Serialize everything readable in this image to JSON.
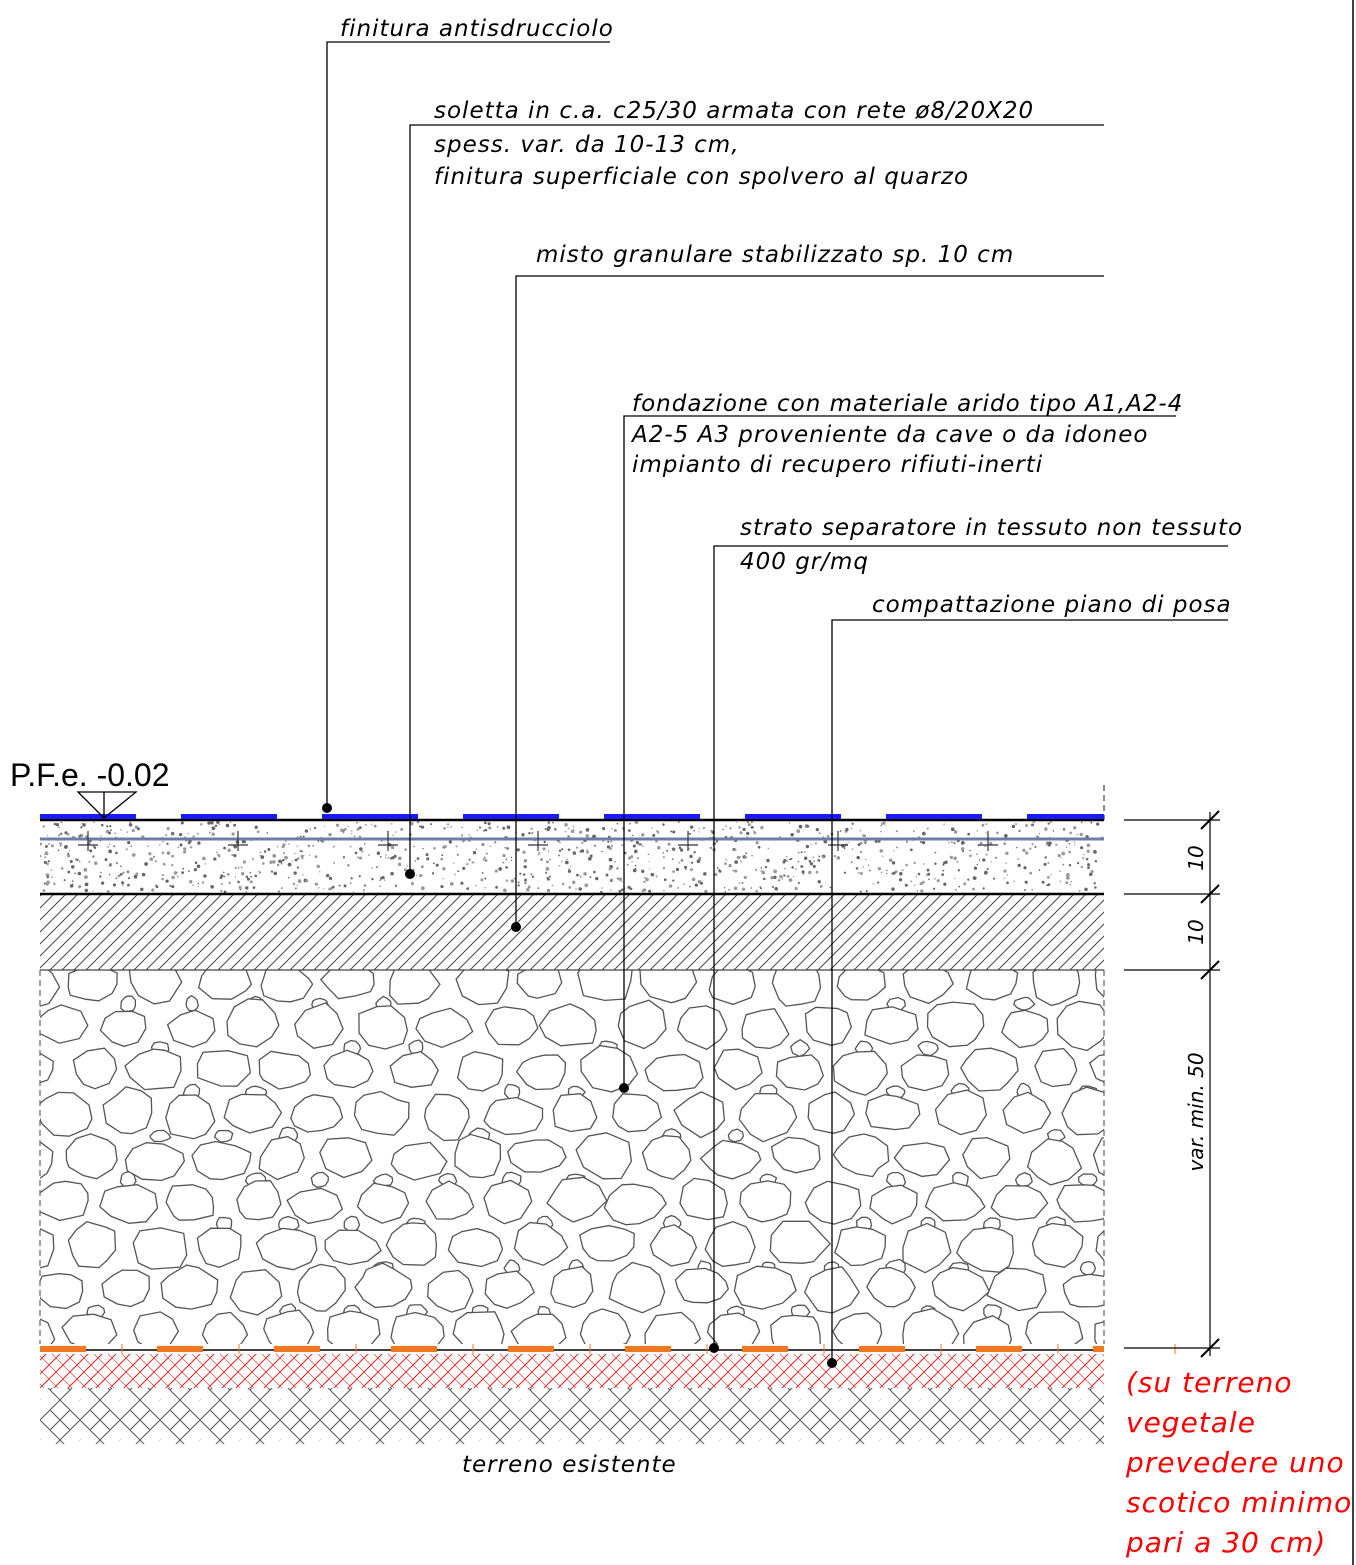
{
  "elevation": {
    "label": "P.F.e. -0.02"
  },
  "callouts": [
    {
      "id": "finitura",
      "lines": [
        "finitura antisdrucciolo"
      ]
    },
    {
      "id": "soletta",
      "lines": [
        "soletta in c.a. c25/30 armata con rete ø8/20X20",
        "spess. var. da 10-13 cm,",
        "finitura superficiale con spolvero al quarzo"
      ]
    },
    {
      "id": "misto",
      "lines": [
        "misto granulare stabilizzato sp. 10 cm"
      ]
    },
    {
      "id": "fondazione",
      "lines": [
        "fondazione  con materiale arido tipo A1,A2-4",
        "A2-5 A3 proveniente da cave o da idoneo",
        "impianto di recupero rifiuti-inerti"
      ]
    },
    {
      "id": "strato",
      "lines": [
        "strato separatore in tessuto non tessuto",
        "400 gr/mq"
      ]
    },
    {
      "id": "compattazione",
      "lines": [
        "compattazione piano di posa"
      ]
    }
  ],
  "dimensions": [
    "10",
    "10",
    "var. min. 50"
  ],
  "ground_label": "terreno esistente",
  "note": {
    "lines": [
      "(su terreno",
      "vegetale",
      "prevedere uno",
      "scotico minimo",
      "pari a 30 cm)"
    ],
    "color": "#ff0000"
  },
  "colors": {
    "finish_strip": "#1a1aff",
    "rebar": "#6a7fa8",
    "separator": "#f07820",
    "scotico_hatch": "#e0201c",
    "stone_fill": "#ffffff",
    "stone_stroke": "#555555"
  }
}
